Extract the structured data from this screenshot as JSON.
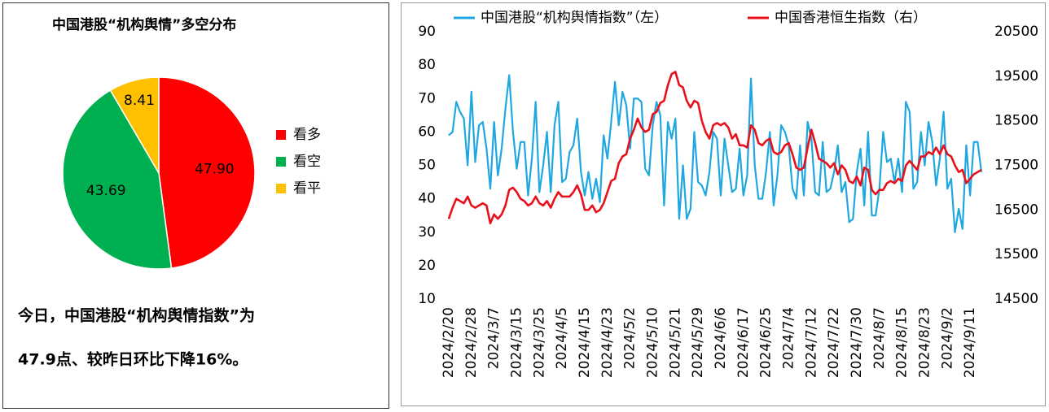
{
  "chart_data": [
    {
      "type": "pie",
      "title": "中国港股“机构舆情”多空分布",
      "categories": [
        "看多",
        "看空",
        "看平"
      ],
      "values": [
        47.9,
        43.69,
        8.41
      ],
      "value_labels": [
        "47.90",
        "43.69",
        "8.41"
      ],
      "colors": [
        "#ff0000",
        "#00b050",
        "#ffc000"
      ],
      "legend": "right"
    },
    {
      "type": "line",
      "categories": [
        "2024/2/20",
        null,
        null,
        null,
        null,
        null,
        "2024/2/28",
        null,
        null,
        null,
        null,
        null,
        "2024/3/7",
        null,
        null,
        null,
        null,
        null,
        "2024/3/15",
        null,
        null,
        null,
        null,
        null,
        "2024/3/25",
        null,
        null,
        null,
        null,
        null,
        "2024/4/5",
        null,
        null,
        null,
        null,
        null,
        "2024/4/15",
        null,
        null,
        null,
        null,
        null,
        "2024/4/23",
        null,
        null,
        null,
        null,
        null,
        "2024/5/2",
        null,
        null,
        null,
        null,
        null,
        "2024/5/10",
        null,
        null,
        null,
        null,
        null,
        "2024/5/21",
        null,
        null,
        null,
        null,
        null,
        "2024/5/29",
        null,
        null,
        null,
        null,
        null,
        "2024/6/6",
        null,
        null,
        null,
        null,
        null,
        "2024/6/17",
        null,
        null,
        null,
        null,
        null,
        "2024/6/25",
        null,
        null,
        null,
        null,
        null,
        "2024/7/4",
        null,
        null,
        null,
        null,
        null,
        "2024/7/12",
        null,
        null,
        null,
        null,
        null,
        "2024/7/22",
        null,
        null,
        null,
        null,
        null,
        "2024/7/30",
        null,
        null,
        null,
        null,
        null,
        "2024/8/7",
        null,
        null,
        null,
        null,
        null,
        "2024/8/15",
        null,
        null,
        null,
        null,
        null,
        "2024/8/23",
        null,
        null,
        null,
        null,
        null,
        "2024/9/2",
        null,
        null,
        null,
        null,
        null,
        "2024/9/11",
        null,
        null,
        null
      ],
      "series": [
        {
          "name": "中国港股“机构舆情指数”（左）",
          "color": "#1ea7e1",
          "values": [
            59,
            60,
            69,
            66,
            64,
            50,
            72,
            51,
            62,
            63,
            55,
            43,
            63,
            47,
            55,
            67,
            77,
            60,
            49,
            57,
            57,
            41,
            52,
            69,
            42,
            50,
            60,
            42,
            62,
            69,
            45,
            46,
            54,
            56,
            64,
            48,
            41,
            48,
            40,
            46,
            39,
            59,
            52,
            63,
            75,
            62,
            72,
            68,
            55,
            70,
            70,
            69,
            49,
            47,
            62,
            69,
            65,
            38,
            63,
            58,
            64,
            34,
            50,
            34,
            37,
            60,
            45,
            44,
            41,
            48,
            60,
            58,
            41,
            58,
            50,
            42,
            43,
            55,
            41,
            47,
            76,
            50,
            40,
            40,
            48,
            60,
            38,
            47,
            62,
            60,
            56,
            43,
            40,
            56,
            41,
            63,
            58,
            42,
            41,
            57,
            42,
            43,
            48,
            56,
            42,
            45,
            33,
            34,
            48,
            55,
            38,
            60,
            35,
            35,
            43,
            60,
            51,
            52,
            45,
            52,
            42,
            69,
            66,
            43,
            45,
            60,
            50,
            63,
            57,
            44,
            52,
            66,
            43,
            46,
            30,
            37,
            31,
            56,
            41,
            57,
            57,
            48
          ]
        },
        {
          "name": "中国香港恒生指数（右）",
          "color": "#e8101a",
          "axis": "y2",
          "values": [
            16300,
            16550,
            16750,
            16700,
            16650,
            16800,
            16600,
            16550,
            16600,
            16650,
            16600,
            16200,
            16400,
            16300,
            16400,
            16600,
            16950,
            17000,
            16900,
            16750,
            16700,
            16600,
            16650,
            16800,
            16650,
            16600,
            16700,
            16550,
            16750,
            16900,
            16800,
            16800,
            16800,
            16900,
            17050,
            16850,
            16500,
            16500,
            16600,
            16450,
            16500,
            16650,
            16900,
            17150,
            17200,
            17550,
            17700,
            17750,
            18100,
            18300,
            18550,
            18350,
            18250,
            18300,
            18650,
            18700,
            18900,
            18950,
            19300,
            19550,
            19600,
            19300,
            19250,
            18950,
            18800,
            18950,
            18900,
            18500,
            18250,
            18100,
            18400,
            18450,
            18400,
            18450,
            18350,
            18100,
            18200,
            17950,
            17950,
            17900,
            18400,
            18300,
            18000,
            17950,
            18050,
            18100,
            17800,
            17750,
            17800,
            17950,
            18000,
            17750,
            17450,
            17400,
            17450,
            17900,
            18300,
            18000,
            17650,
            17600,
            17550,
            17450,
            17550,
            17300,
            17500,
            17400,
            17150,
            17100,
            17250,
            17050,
            17450,
            17400,
            16950,
            16850,
            16950,
            16950,
            17100,
            17150,
            17100,
            17200,
            17150,
            17500,
            17600,
            17500,
            17400,
            17700,
            17700,
            17800,
            17750,
            17900,
            17750,
            17950,
            17750,
            17700,
            17500,
            17350,
            17400,
            17100,
            17200,
            17300,
            17350,
            17400
          ]
        }
      ],
      "ylim": [
        10,
        90
      ],
      "yticks": [
        10,
        20,
        30,
        40,
        50,
        60,
        70,
        80,
        90
      ],
      "y2lim": [
        14500,
        20500
      ],
      "y2ticks": [
        14500,
        15500,
        16500,
        17500,
        18500,
        19500,
        20500
      ],
      "legend": "top",
      "grid": false
    }
  ],
  "summary": {
    "lines": [
      "今日，中国港股“机构舆情指数”为",
      "47.9点、较昨日环比下降16%。"
    ]
  }
}
